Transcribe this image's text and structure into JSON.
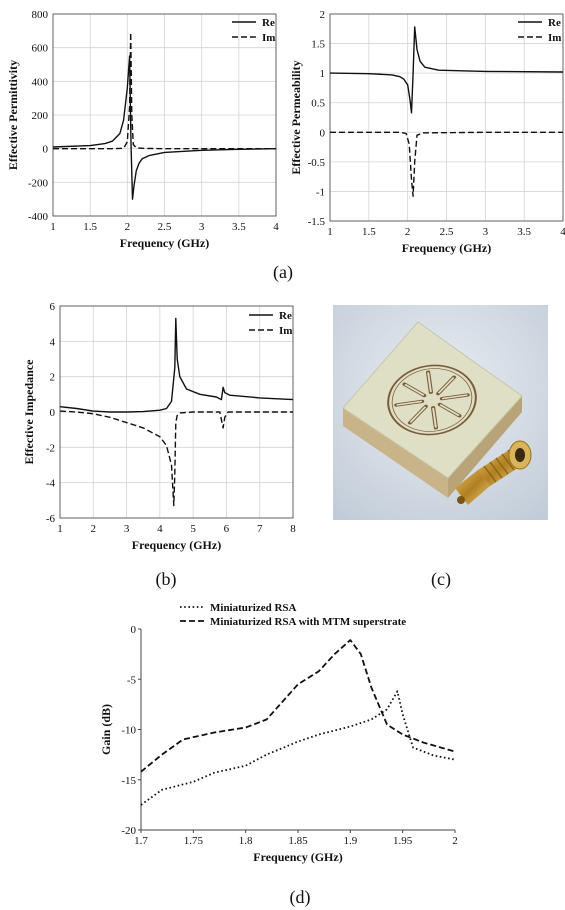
{
  "captions": [
    "(a)",
    "(b)",
    "(c)",
    "(d)"
  ],
  "colors": {
    "line": "#111111",
    "grid": "#d4d4d4",
    "photo_bg": "#d6dde6",
    "board": "#dedfc4",
    "gold": "#c8962e"
  },
  "chart_data": [
    {
      "type": "line",
      "xlabel": "Frequency (GHz)",
      "ylabel": "Effective Permittivity",
      "xlim": [
        1,
        4
      ],
      "ylim": [
        -400,
        800
      ],
      "xticks": [
        "1",
        "1.5",
        "2",
        "2.5",
        "3",
        "3.5",
        "4"
      ],
      "yticks": [
        "-400",
        "-200",
        "0",
        "200",
        "400",
        "600",
        "800"
      ],
      "grid": true,
      "legend": "top-right",
      "series": [
        {
          "name": "Re",
          "style": "solid",
          "x": [
            1,
            1.5,
            1.7,
            1.8,
            1.9,
            1.95,
            2.0,
            2.03,
            2.05,
            2.07,
            2.09,
            2.12,
            2.16,
            2.2,
            2.3,
            2.5,
            3,
            3.5,
            4
          ],
          "y": [
            10,
            18,
            30,
            45,
            90,
            170,
            360,
            550,
            30,
            -300,
            -220,
            -130,
            -85,
            -60,
            -40,
            -22,
            -10,
            -4,
            0
          ]
        },
        {
          "name": "Im",
          "style": "dashed",
          "x": [
            1,
            1.8,
            1.95,
            2.0,
            2.03,
            2.045,
            2.06,
            2.08,
            2.12,
            2.2,
            2.5,
            3,
            4
          ],
          "y": [
            0,
            0,
            2,
            40,
            250,
            690,
            200,
            25,
            5,
            2,
            0,
            0,
            0
          ]
        }
      ]
    },
    {
      "type": "line",
      "xlabel": "Frequency (GHz)",
      "ylabel": "Effective Permeability",
      "xlim": [
        1,
        4
      ],
      "ylim": [
        -1.5,
        2
      ],
      "xticks": [
        "1",
        "1.5",
        "2",
        "2.5",
        "3",
        "3.5",
        "4"
      ],
      "yticks": [
        "-1.5",
        "-1",
        "-0.5",
        "0",
        "0.5",
        "1",
        "1.5",
        "2"
      ],
      "grid": true,
      "legend": "top-right",
      "series": [
        {
          "name": "Re",
          "style": "solid",
          "x": [
            1,
            1.5,
            1.8,
            1.9,
            1.95,
            2.0,
            2.03,
            2.05,
            2.07,
            2.09,
            2.12,
            2.16,
            2.22,
            2.4,
            3,
            4
          ],
          "y": [
            1.0,
            0.99,
            0.97,
            0.94,
            0.9,
            0.8,
            0.55,
            0.33,
            1.0,
            1.78,
            1.4,
            1.2,
            1.1,
            1.05,
            1.03,
            1.02
          ]
        },
        {
          "name": "Im",
          "style": "dashed",
          "x": [
            1,
            1.9,
            1.98,
            2.02,
            2.05,
            2.07,
            2.09,
            2.12,
            2.2,
            3,
            4
          ],
          "y": [
            0,
            0,
            -0.02,
            -0.2,
            -0.8,
            -1.08,
            -0.5,
            -0.05,
            -0.01,
            0,
            0
          ]
        }
      ]
    },
    {
      "type": "line",
      "xlabel": "Frequency (GHz)",
      "ylabel": "Effective Impedance",
      "xlim": [
        1,
        8
      ],
      "ylim": [
        -6,
        6
      ],
      "xticks": [
        "1",
        "2",
        "3",
        "4",
        "5",
        "6",
        "7",
        "8"
      ],
      "yticks": [
        "-6",
        "-4",
        "-2",
        "0",
        "2",
        "4",
        "6"
      ],
      "grid": true,
      "legend": "top-right",
      "series": [
        {
          "name": "Re",
          "style": "solid",
          "x": [
            1,
            1.5,
            2,
            2.5,
            3,
            3.5,
            4,
            4.2,
            4.35,
            4.45,
            4.48,
            4.52,
            4.6,
            4.8,
            5.2,
            5.7,
            5.85,
            5.9,
            5.95,
            6.1,
            7,
            8
          ],
          "y": [
            0.3,
            0.2,
            0.05,
            0.0,
            0.0,
            0.02,
            0.1,
            0.2,
            0.6,
            2.5,
            5.3,
            3.0,
            2.0,
            1.3,
            1.0,
            0.85,
            0.7,
            1.4,
            1.1,
            0.95,
            0.8,
            0.7
          ]
        },
        {
          "name": "Im",
          "style": "dashed",
          "x": [
            1,
            1.5,
            2,
            2.5,
            3,
            3.5,
            4,
            4.2,
            4.35,
            4.42,
            4.45,
            4.48,
            4.52,
            4.6,
            5,
            5.8,
            5.9,
            5.95,
            6.05,
            7,
            8
          ],
          "y": [
            0.05,
            0.0,
            -0.1,
            -0.3,
            -0.6,
            -0.9,
            -1.4,
            -1.9,
            -3.0,
            -5.3,
            -3.5,
            -0.6,
            -0.2,
            -0.05,
            0.0,
            0.0,
            -0.9,
            -0.3,
            0.0,
            0.0,
            0.0
          ]
        }
      ]
    },
    {
      "type": "line",
      "xlabel": "Frequency (GHz)",
      "ylabel": "Gain (dB)",
      "xlim": [
        1.7,
        2.0
      ],
      "ylim": [
        -20,
        0
      ],
      "xticks": [
        "1.7",
        "1.75",
        "1.8",
        "1.85",
        "1.9",
        "1.95",
        "2"
      ],
      "yticks": [
        "-20",
        "-15",
        "-10",
        "-5",
        "0"
      ],
      "grid": false,
      "legend": "top",
      "series": [
        {
          "name": "Miniaturized RSA",
          "style": "dotted",
          "x": [
            1.7,
            1.72,
            1.75,
            1.77,
            1.8,
            1.82,
            1.85,
            1.87,
            1.9,
            1.92,
            1.935,
            1.945,
            1.95,
            1.96,
            1.98,
            2.0
          ],
          "y": [
            -17.5,
            -16.0,
            -15.2,
            -14.3,
            -13.6,
            -12.5,
            -11.2,
            -10.5,
            -9.7,
            -9.0,
            -8.0,
            -6.2,
            -8.5,
            -11.8,
            -12.6,
            -13.0
          ]
        },
        {
          "name": "Miniaturized RSA with MTM superstrate",
          "style": "dashed",
          "x": [
            1.7,
            1.72,
            1.74,
            1.77,
            1.8,
            1.82,
            1.85,
            1.87,
            1.885,
            1.9,
            1.91,
            1.92,
            1.935,
            1.95,
            1.97,
            2.0
          ],
          "y": [
            -14.2,
            -12.5,
            -11.0,
            -10.3,
            -9.8,
            -9.0,
            -5.5,
            -4.2,
            -2.5,
            -1.1,
            -2.5,
            -5.8,
            -9.5,
            -10.5,
            -11.3,
            -12.2
          ]
        }
      ]
    }
  ]
}
